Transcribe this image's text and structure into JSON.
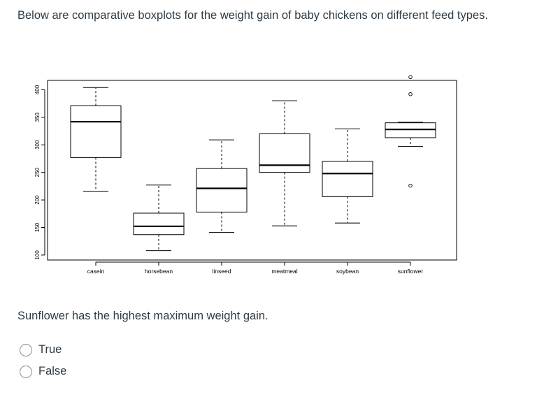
{
  "question": {
    "text": "Below are comparative boxplots for the weight gain of baby chickens on different feed types."
  },
  "statement": "Sunflower has the highest maximum weight gain.",
  "options": [
    {
      "label": "True"
    },
    {
      "label": "False"
    }
  ],
  "chart_data": {
    "type": "boxplot",
    "title": "",
    "xlabel": "",
    "ylabel": "",
    "ylim": [
      95,
      430
    ],
    "yticks": [
      100,
      150,
      200,
      250,
      300,
      350,
      400
    ],
    "categories": [
      "casein",
      "horsebean",
      "linseed",
      "meatmeal",
      "soybean",
      "sunflower"
    ],
    "boxes": [
      {
        "name": "casein",
        "whisker_low": 216,
        "q1": 277,
        "median": 342,
        "q3": 371,
        "whisker_high": 404,
        "outliers": []
      },
      {
        "name": "horsebean",
        "whisker_low": 108,
        "q1": 137,
        "median": 152,
        "q3": 176,
        "whisker_high": 227,
        "outliers": []
      },
      {
        "name": "linseed",
        "whisker_low": 141,
        "q1": 178,
        "median": 221,
        "q3": 257,
        "whisker_high": 309,
        "outliers": []
      },
      {
        "name": "meatmeal",
        "whisker_low": 153,
        "q1": 250,
        "median": 263,
        "q3": 320,
        "whisker_high": 380,
        "outliers": []
      },
      {
        "name": "soybean",
        "whisker_low": 158,
        "q1": 206,
        "median": 248,
        "q3": 270,
        "whisker_high": 329,
        "outliers": []
      },
      {
        "name": "sunflower",
        "whisker_low": 297,
        "q1": 313,
        "median": 328,
        "q3": 340,
        "whisker_high": 341,
        "outliers": [
          226,
          392,
          423
        ]
      }
    ]
  }
}
